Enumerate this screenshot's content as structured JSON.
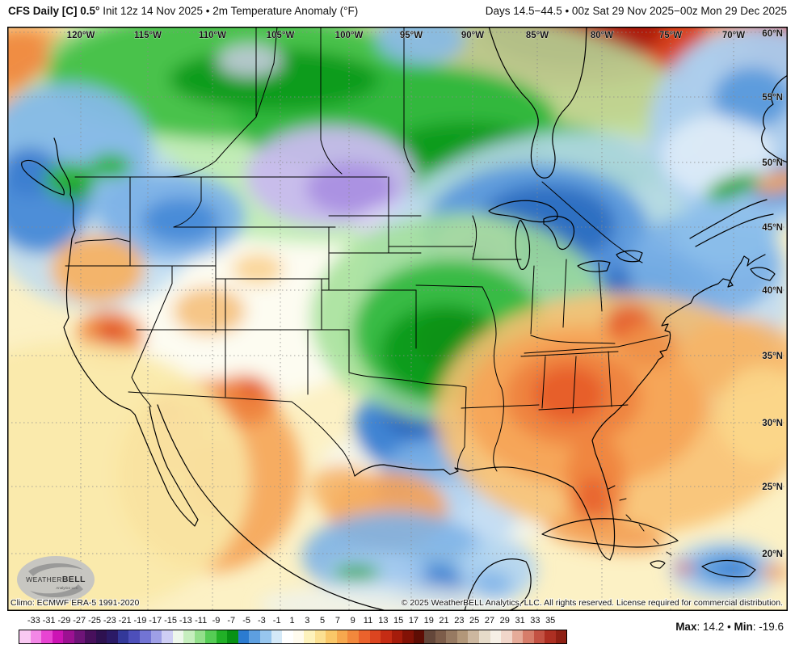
{
  "header": {
    "title_bold": "CFS Daily [C] 0.5°",
    "title_rest": " Init 12z 14 Nov 2025 • 2m Temperature Anomaly (°F)",
    "range_label": "Days 14.5−44.5 • 00z Sat 29 Nov 2025−00z Mon 29 Dec 2025"
  },
  "map": {
    "climo_label": "Climo: ECMWF ERA-5 1991-2020",
    "copyright": "© 2025 WeatherBELL Analytics, LLC. All rights reserved. License required for commercial distribution.",
    "logo_text": "WeatherBELL",
    "logo_sub": "Analytics LLC",
    "lon_labels": [
      "120°W",
      "115°W",
      "110°W",
      "105°W",
      "100°W",
      "95°W",
      "90°W",
      "85°W",
      "80°W",
      "75°W",
      "70°W"
    ],
    "lat_labels": [
      "60°N",
      "55°N",
      "50°N",
      "45°N",
      "40°N",
      "35°N",
      "30°N",
      "25°N",
      "20°N"
    ]
  },
  "colorbar": {
    "tick_labels": [
      "-33",
      "-31",
      "-29",
      "-27",
      "-25",
      "-23",
      "-21",
      "-19",
      "-17",
      "-15",
      "-13",
      "-11",
      "-9",
      "-7",
      "-5",
      "-3",
      "-1",
      "1",
      "3",
      "5",
      "7",
      "9",
      "11",
      "13",
      "15",
      "17",
      "19",
      "21",
      "23",
      "25",
      "27",
      "29",
      "31",
      "33",
      "35"
    ],
    "cell_colors": [
      "#f9c9f2",
      "#f387e6",
      "#e844d2",
      "#cc14b4",
      "#9c1192",
      "#6e1478",
      "#48105c",
      "#2e1150",
      "#2b1a66",
      "#333899",
      "#4d4fba",
      "#7274d4",
      "#9e9fe6",
      "#cecef4",
      "#eef7ec",
      "#c6eebe",
      "#93df8b",
      "#55cc55",
      "#21b027",
      "#089114",
      "#2b7bd0",
      "#5d9fe0",
      "#97c6ee",
      "#d4e9f8",
      "#ffffff",
      "#fffbee",
      "#fdf2bc",
      "#fbe092",
      "#f9c768",
      "#f6a84e",
      "#f2883c",
      "#ea622c",
      "#dc4520",
      "#c52c14",
      "#a51c0b",
      "#821206",
      "#5e0d04",
      "#64473a",
      "#7d5d4a",
      "#977a62",
      "#b29779",
      "#ccb79f",
      "#e6dbc9",
      "#f6f0e6",
      "#f1d6ca",
      "#e5ab99",
      "#d67d6a",
      "#c35243",
      "#ad2f22",
      "#8f2014"
    ]
  },
  "stats": {
    "max_label": "Max",
    "max_value": ": 14.2",
    "sep": " • ",
    "min_label": "Min",
    "min_value": ": -19.6"
  }
}
